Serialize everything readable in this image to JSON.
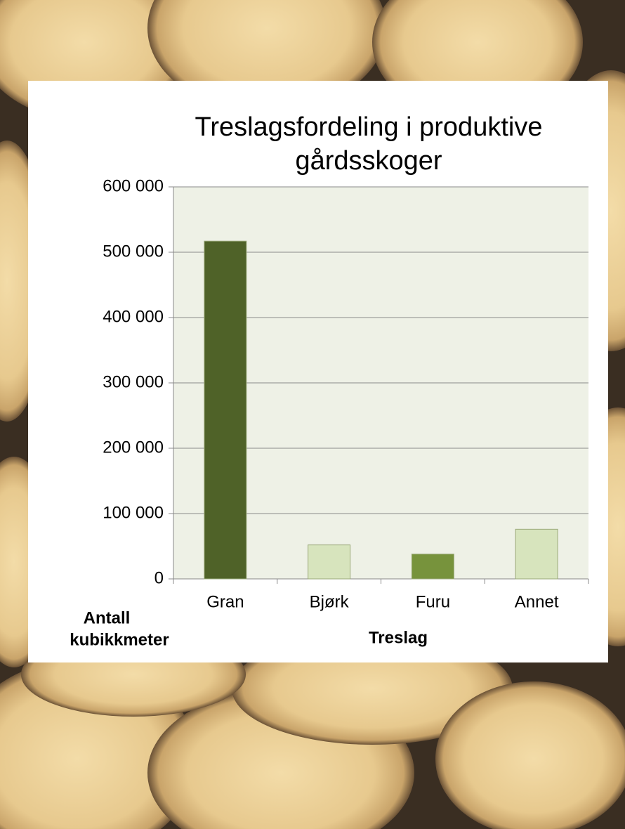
{
  "chart_data": {
    "type": "bar",
    "title": [
      "Treslagsfordeling  i produktive",
      "gårdsskoger"
    ],
    "y_label": [
      "Antall",
      "kubikkmeter"
    ],
    "x_label": "Treslag",
    "categories": [
      "Gran",
      "Bjørk",
      "Furu",
      "Annet"
    ],
    "values": [
      517000,
      52000,
      38000,
      76000
    ],
    "colors": [
      "#4f6228",
      "#d7e4bd",
      "#77933c",
      "#d7e4bd"
    ],
    "ylim": [
      0,
      600000
    ],
    "yticks": [
      0,
      {
        "value": 100000,
        "label": "100 000"
      },
      {
        "value": 200000,
        "label": "200 000"
      },
      {
        "value": 300000,
        "label": "300 000"
      },
      {
        "value": 400000,
        "label": "400 000"
      },
      {
        "value": 500000,
        "label": "500 000"
      },
      {
        "value": 600000,
        "label": "600 000"
      }
    ],
    "grid": true
  }
}
